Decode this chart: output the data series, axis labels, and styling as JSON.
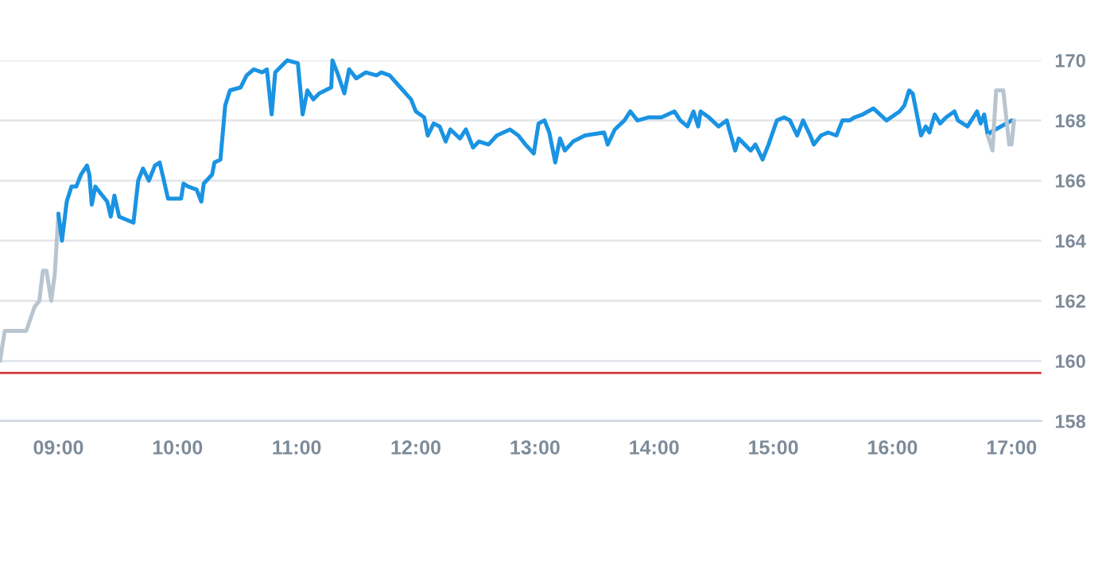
{
  "chart_data": {
    "type": "line",
    "xlim": [
      8.51,
      17.25
    ],
    "ylim": [
      158,
      170
    ],
    "xticks": [
      {
        "value": 9,
        "label": "09:00"
      },
      {
        "value": 10,
        "label": "10:00"
      },
      {
        "value": 11,
        "label": "11:00"
      },
      {
        "value": 12,
        "label": "12:00"
      },
      {
        "value": 13,
        "label": "13:00"
      },
      {
        "value": 14,
        "label": "14:00"
      },
      {
        "value": 15,
        "label": "15:00"
      },
      {
        "value": 16,
        "label": "16:00"
      },
      {
        "value": 17,
        "label": "17:00"
      }
    ],
    "yticks": [
      158,
      160,
      162,
      164,
      166,
      168,
      170
    ],
    "grid": "y",
    "marker": "none",
    "line_style": "solid",
    "ref_lines": [
      {
        "axis": "y",
        "value": 159.6,
        "color": "#d03a3a"
      }
    ],
    "series": [
      {
        "color": "#b8c5d0",
        "x": [
          8.51,
          8.55,
          8.73,
          8.8,
          8.84,
          8.87,
          8.9,
          8.94,
          8.97,
          9.0
        ],
        "values": [
          160.0,
          161.0,
          161.0,
          161.8,
          162.0,
          163.0,
          163.0,
          162.0,
          162.9,
          164.9
        ]
      },
      {
        "color": "#1a93e3",
        "x": [
          9.0,
          9.03,
          9.07,
          9.11,
          9.15,
          9.19,
          9.24,
          9.26,
          9.28,
          9.31,
          9.37,
          9.41,
          9.44,
          9.47,
          9.51,
          9.63,
          9.67,
          9.71,
          9.76,
          9.81,
          9.85,
          9.88,
          9.92,
          10.03,
          10.05,
          10.09,
          10.16,
          10.2,
          10.22,
          10.29,
          10.31,
          10.36,
          10.4,
          10.44,
          10.53,
          10.58,
          10.64,
          10.71,
          10.75,
          10.79,
          10.82,
          10.92,
          11.01,
          11.05,
          11.09,
          11.14,
          11.19,
          11.29,
          11.3,
          11.34,
          11.4,
          11.44,
          11.5,
          11.58,
          11.67,
          11.71,
          11.78,
          11.87,
          11.96,
          12.0,
          12.07,
          12.1,
          12.15,
          12.2,
          12.25,
          12.29,
          12.37,
          12.42,
          12.48,
          12.53,
          12.61,
          12.68,
          12.79,
          12.86,
          12.92,
          12.99,
          13.03,
          13.08,
          13.12,
          13.17,
          13.21,
          13.25,
          13.32,
          13.42,
          13.58,
          13.61,
          13.67,
          13.75,
          13.8,
          13.86,
          13.95,
          14.06,
          14.17,
          14.22,
          14.28,
          14.33,
          14.37,
          14.39,
          14.46,
          14.54,
          14.61,
          14.63,
          14.68,
          14.71,
          14.76,
          14.81,
          14.85,
          14.91,
          14.96,
          15.03,
          15.09,
          15.14,
          15.2,
          15.25,
          15.31,
          15.34,
          15.4,
          15.46,
          15.53,
          15.58,
          15.64,
          15.68,
          15.75,
          15.84,
          15.95,
          16.06,
          16.1,
          16.14,
          16.17,
          16.21,
          16.24,
          16.28,
          16.31,
          16.355,
          16.4,
          16.45,
          16.52,
          16.55,
          16.63,
          16.71,
          16.74,
          16.77,
          16.8,
          16.82,
          17.0
        ],
        "values": [
          164.9,
          164.0,
          165.3,
          165.8,
          165.8,
          166.2,
          166.5,
          166.2,
          165.2,
          165.8,
          165.5,
          165.3,
          164.8,
          165.5,
          164.8,
          164.6,
          166.0,
          166.4,
          166.0,
          166.5,
          166.6,
          166.1,
          165.4,
          165.4,
          165.9,
          165.8,
          165.7,
          165.3,
          165.9,
          166.2,
          166.6,
          166.7,
          168.5,
          169.0,
          169.1,
          169.5,
          169.7,
          169.6,
          169.7,
          168.2,
          169.6,
          170.0,
          169.9,
          168.2,
          169.0,
          168.7,
          168.9,
          169.1,
          170.0,
          169.6,
          168.9,
          169.7,
          169.4,
          169.6,
          169.5,
          169.6,
          169.5,
          169.1,
          168.7,
          168.3,
          168.1,
          167.5,
          167.9,
          167.8,
          167.3,
          167.7,
          167.4,
          167.7,
          167.1,
          167.3,
          167.2,
          167.5,
          167.7,
          167.5,
          167.2,
          166.9,
          167.9,
          168.0,
          167.6,
          166.6,
          167.4,
          167.0,
          167.3,
          167.5,
          167.6,
          167.2,
          167.7,
          168.0,
          168.3,
          168.0,
          168.1,
          168.1,
          168.3,
          168.0,
          167.8,
          168.3,
          167.8,
          168.3,
          168.1,
          167.8,
          168.0,
          167.7,
          167.0,
          167.4,
          167.2,
          167.0,
          167.2,
          166.7,
          167.2,
          168.0,
          168.1,
          168.0,
          167.5,
          168.0,
          167.5,
          167.2,
          167.5,
          167.6,
          167.5,
          168.0,
          168.0,
          168.1,
          168.2,
          168.4,
          168.0,
          168.3,
          168.5,
          169.0,
          168.9,
          168.1,
          167.5,
          167.8,
          167.6,
          168.2,
          167.9,
          168.1,
          168.3,
          168.0,
          167.8,
          168.3,
          167.9,
          168.2,
          167.5,
          167.6,
          168.0
        ]
      },
      {
        "color": "#b8c5d0",
        "x": [
          16.8,
          16.84,
          16.87,
          16.93,
          16.98,
          17.0,
          17.02
        ],
        "values": [
          167.5,
          167.0,
          169.0,
          169.0,
          167.2,
          167.2,
          168.0
        ]
      }
    ]
  }
}
